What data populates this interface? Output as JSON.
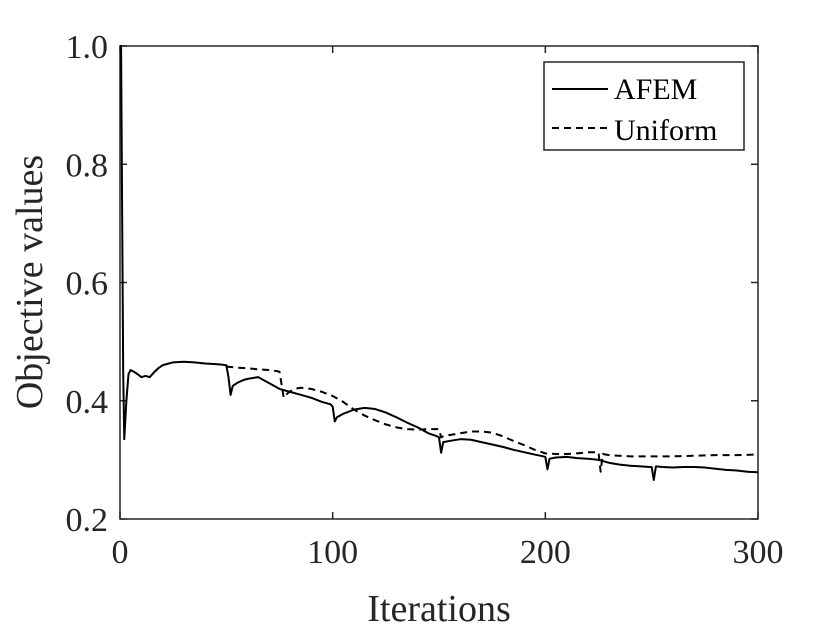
{
  "chart_data": {
    "type": "line",
    "title": "",
    "xlabel": "Iterations",
    "ylabel": "Objective values",
    "xlim": [
      0,
      300
    ],
    "ylim": [
      0.2,
      1.0
    ],
    "xticks": [
      0,
      100,
      200,
      300
    ],
    "yticks": [
      0.2,
      0.4,
      0.6,
      0.8,
      1.0
    ],
    "xtick_labels": [
      "0",
      "100",
      "200",
      "300"
    ],
    "ytick_labels": [
      "0.2",
      "0.4",
      "0.6",
      "0.8",
      "1.0"
    ],
    "grid": false,
    "legend_position": "top-right",
    "series": [
      {
        "name": "AFEM",
        "line_style": "solid",
        "color": "#000000",
        "x": [
          0,
          0.5,
          1,
          1.5,
          2,
          3,
          4,
          5,
          7,
          9,
          10,
          12,
          14,
          16,
          18,
          20,
          25,
          30,
          35,
          40,
          45,
          48,
          50,
          51,
          52,
          53,
          55,
          58,
          60,
          65,
          70,
          75,
          80,
          85,
          90,
          95,
          99,
          100,
          101,
          102,
          105,
          110,
          115,
          120,
          125,
          130,
          135,
          140,
          145,
          149,
          150,
          151,
          152,
          155,
          160,
          165,
          170,
          175,
          180,
          185,
          190,
          195,
          199,
          200,
          201,
          202,
          205,
          210,
          215,
          220,
          225,
          230,
          235,
          240,
          245,
          249,
          250,
          251,
          252,
          255,
          260,
          265,
          270,
          275,
          280,
          285,
          290,
          295,
          300
        ],
        "y": [
          1.0,
          1.0,
          0.72,
          0.45,
          0.335,
          0.4,
          0.445,
          0.452,
          0.448,
          0.443,
          0.44,
          0.442,
          0.44,
          0.448,
          0.455,
          0.46,
          0.465,
          0.466,
          0.465,
          0.463,
          0.462,
          0.461,
          0.46,
          0.44,
          0.41,
          0.425,
          0.43,
          0.435,
          0.437,
          0.44,
          0.43,
          0.42,
          0.415,
          0.41,
          0.405,
          0.398,
          0.394,
          0.39,
          0.365,
          0.372,
          0.378,
          0.385,
          0.388,
          0.386,
          0.38,
          0.372,
          0.363,
          0.355,
          0.345,
          0.34,
          0.338,
          0.312,
          0.33,
          0.332,
          0.335,
          0.334,
          0.33,
          0.326,
          0.322,
          0.317,
          0.313,
          0.309,
          0.306,
          0.305,
          0.284,
          0.302,
          0.304,
          0.305,
          0.303,
          0.302,
          0.3,
          0.295,
          0.292,
          0.29,
          0.289,
          0.288,
          0.288,
          0.266,
          0.289,
          0.288,
          0.287,
          0.288,
          0.288,
          0.287,
          0.285,
          0.283,
          0.282,
          0.28,
          0.279
        ]
      },
      {
        "name": "Uniform",
        "line_style": "dashed",
        "color": "#000000",
        "x": [
          50,
          52,
          55,
          60,
          65,
          70,
          74,
          75,
          76,
          77,
          78,
          80,
          82,
          85,
          90,
          95,
          100,
          105,
          110,
          115,
          120,
          125,
          130,
          135,
          140,
          145,
          149,
          150,
          151,
          152,
          155,
          160,
          165,
          170,
          175,
          180,
          185,
          190,
          195,
          200,
          205,
          210,
          215,
          220,
          224,
          225,
          226,
          227,
          230,
          240,
          250,
          260,
          270,
          280,
          290,
          300
        ],
        "y": [
          0.458,
          0.457,
          0.456,
          0.455,
          0.453,
          0.452,
          0.45,
          0.449,
          0.427,
          0.405,
          0.41,
          0.416,
          0.42,
          0.422,
          0.42,
          0.415,
          0.408,
          0.398,
          0.385,
          0.375,
          0.367,
          0.36,
          0.355,
          0.352,
          0.351,
          0.352,
          0.352,
          0.352,
          0.338,
          0.34,
          0.342,
          0.345,
          0.348,
          0.348,
          0.346,
          0.34,
          0.332,
          0.325,
          0.317,
          0.311,
          0.31,
          0.31,
          0.311,
          0.313,
          0.313,
          0.313,
          0.28,
          0.31,
          0.308,
          0.306,
          0.306,
          0.306,
          0.307,
          0.308,
          0.308,
          0.309
        ]
      }
    ]
  }
}
